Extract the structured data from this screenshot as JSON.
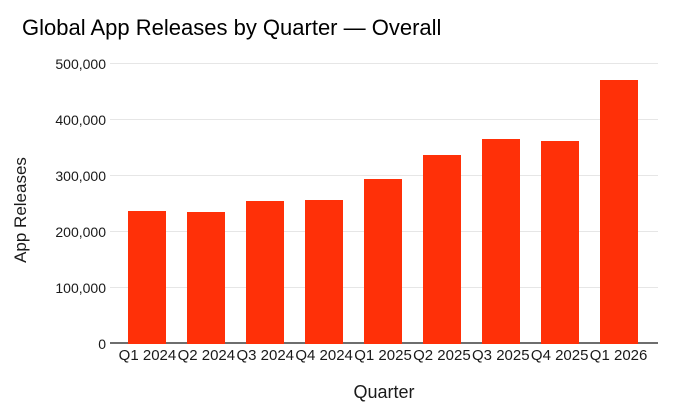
{
  "chart_data": {
    "type": "bar",
    "title": "Global App Releases by Quarter — Overall",
    "xlabel": "Quarter",
    "ylabel": "App Releases",
    "categories": [
      "Q1 2024",
      "Q2 2024",
      "Q3 2024",
      "Q4 2024",
      "Q1 2025",
      "Q2 2025",
      "Q3 2025",
      "Q4 2025",
      "Q1 2026"
    ],
    "values": [
      237000,
      235000,
      256000,
      258000,
      295000,
      337000,
      366000,
      363000,
      472000
    ],
    "ylim": [
      0,
      500000
    ],
    "ytick_interval": 100000,
    "ytick_labels": [
      "0",
      "100,000",
      "200,000",
      "300,000",
      "400,000",
      "500,000"
    ],
    "grid": true,
    "legend": "none",
    "colors": {
      "bar": "#ff3008",
      "gridline": "#e6e6e6",
      "axis_line": "#6e6e6e",
      "title_text": "#000000",
      "tick_text": "#1a1a1a"
    }
  }
}
